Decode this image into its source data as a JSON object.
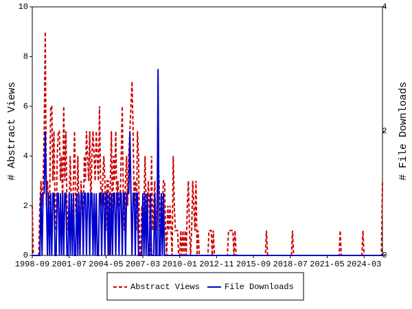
{
  "chart_data": {
    "type": "line",
    "x": [
      "1998-09",
      "1998-10",
      "1998-11",
      "1998-12",
      "1999-01",
      "1999-02",
      "1999-03",
      "1999-04",
      "1999-05",
      "1999-06",
      "1999-07",
      "1999-08",
      "1999-09",
      "1999-10",
      "1999-11",
      "1999-12",
      "2000-01",
      "2000-02",
      "2000-03",
      "2000-04",
      "2000-05",
      "2000-06",
      "2000-07",
      "2000-08",
      "2000-09",
      "2000-10",
      "2000-11",
      "2000-12",
      "2001-01",
      "2001-02",
      "2001-03",
      "2001-04",
      "2001-05",
      "2001-06",
      "2001-07",
      "2001-08",
      "2001-09",
      "2001-10",
      "2001-11",
      "2001-12",
      "2002-01",
      "2002-02",
      "2002-03",
      "2002-04",
      "2002-05",
      "2002-06",
      "2002-07",
      "2002-08",
      "2002-09",
      "2002-10",
      "2002-11",
      "2002-12",
      "2003-01",
      "2003-02",
      "2003-03",
      "2003-04",
      "2003-05",
      "2003-06",
      "2003-07",
      "2003-08",
      "2003-09",
      "2003-10",
      "2003-11",
      "2003-12",
      "2004-01",
      "2004-02",
      "2004-03",
      "2004-04",
      "2004-05",
      "2004-06",
      "2004-07",
      "2004-08",
      "2004-09",
      "2004-10",
      "2004-11",
      "2004-12",
      "2005-01",
      "2005-02",
      "2005-03",
      "2005-04",
      "2005-05",
      "2005-06",
      "2005-07",
      "2005-08",
      "2005-09",
      "2005-10",
      "2005-11",
      "2005-12",
      "2006-01",
      "2006-02",
      "2006-03",
      "2006-04",
      "2006-05",
      "2006-06",
      "2006-07",
      "2006-08",
      "2006-09",
      "2006-10",
      "2006-11",
      "2006-12",
      "2007-01",
      "2007-02",
      "2007-03",
      "2007-04",
      "2007-05",
      "2007-06",
      "2007-07",
      "2007-08",
      "2007-09",
      "2007-10",
      "2007-11",
      "2007-12",
      "2008-01",
      "2008-02",
      "2008-03",
      "2008-04",
      "2008-05",
      "2008-06",
      "2008-07",
      "2008-08",
      "2008-09",
      "2008-10",
      "2008-11",
      "2008-12",
      "2009-01",
      "2009-02",
      "2009-03",
      "2009-04",
      "2009-05",
      "2009-06",
      "2009-07",
      "2009-08",
      "2009-09",
      "2009-10",
      "2009-11",
      "2009-12",
      "2010-01",
      "2010-02",
      "2010-03",
      "2010-04",
      "2010-05",
      "2010-06",
      "2010-07",
      "2010-08",
      "2010-09",
      "2010-10",
      "2010-11",
      "2010-12",
      "2011-01",
      "2011-02",
      "2011-03",
      "2011-04",
      "2011-05",
      "2011-06",
      "2011-07",
      "2011-08",
      "2011-09",
      "2011-10",
      "2011-11",
      "2011-12",
      "2012-01",
      "2012-02",
      "2012-03",
      "2012-04",
      "2012-05",
      "2012-06",
      "2012-07",
      "2012-08",
      "2012-09",
      "2012-10",
      "2012-11",
      "2012-12",
      "2013-01",
      "2013-02",
      "2013-03",
      "2013-04",
      "2013-05",
      "2013-06",
      "2013-07",
      "2013-08",
      "2013-09",
      "2013-10",
      "2013-11",
      "2013-12",
      "2014-01",
      "2014-02",
      "2014-03",
      "2014-04",
      "2014-05",
      "2014-06",
      "2014-07",
      "2014-08",
      "2014-09",
      "2014-10",
      "2014-11",
      "2014-12",
      "2015-01",
      "2015-02",
      "2015-03",
      "2015-04",
      "2015-05",
      "2015-06",
      "2015-07",
      "2015-08",
      "2015-09",
      "2015-10",
      "2015-11",
      "2015-12",
      "2016-01",
      "2016-02",
      "2016-03",
      "2016-04",
      "2016-05",
      "2016-06",
      "2016-07",
      "2016-08",
      "2016-09",
      "2016-10",
      "2016-11",
      "2016-12",
      "2017-01",
      "2017-02",
      "2017-03",
      "2017-04",
      "2017-05",
      "2017-06",
      "2017-07",
      "2017-08",
      "2017-09",
      "2017-10",
      "2017-11",
      "2017-12",
      "2018-01",
      "2018-02",
      "2018-03",
      "2018-04",
      "2018-05",
      "2018-06",
      "2018-07",
      "2018-08",
      "2018-09",
      "2018-10",
      "2018-11",
      "2018-12",
      "2019-01",
      "2019-02",
      "2019-03",
      "2019-04",
      "2019-05",
      "2019-06",
      "2019-07",
      "2019-08",
      "2019-09",
      "2019-10",
      "2019-11",
      "2019-12",
      "2020-01",
      "2020-02",
      "2020-03",
      "2020-04",
      "2020-05",
      "2020-06",
      "2020-07",
      "2020-08",
      "2020-09",
      "2020-10",
      "2020-11",
      "2020-12",
      "2021-01",
      "2021-02",
      "2021-03",
      "2021-04",
      "2021-05",
      "2021-06",
      "2021-07",
      "2021-08",
      "2021-09",
      "2021-10",
      "2021-11",
      "2021-12",
      "2022-01",
      "2022-02",
      "2022-03",
      "2022-04",
      "2022-05",
      "2022-06",
      "2022-07",
      "2022-08",
      "2022-09",
      "2022-10",
      "2022-11",
      "2022-12",
      "2023-01",
      "2023-02",
      "2023-03",
      "2023-04",
      "2023-05",
      "2023-06",
      "2023-07",
      "2023-08",
      "2023-09",
      "2023-10",
      "2023-11",
      "2023-12",
      "2024-01",
      "2024-02",
      "2024-03",
      "2024-04",
      "2024-05",
      "2024-06",
      "2024-07",
      "2024-08",
      "2024-09",
      "2024-10",
      "2024-11",
      "2024-12",
      "2025-01",
      "2025-02",
      "2025-03",
      "2025-04",
      "2025-05",
      "2025-06",
      "2025-07",
      "2025-08"
    ],
    "series": [
      {
        "name": "Abstract Views",
        "color": "#cc0000",
        "dash": true,
        "axis": "y",
        "values": [
          2,
          0,
          0,
          0,
          0,
          0,
          0,
          2,
          3,
          2,
          3,
          5,
          9,
          2,
          3,
          2,
          2,
          6,
          6,
          3,
          5,
          2,
          1,
          4,
          5,
          5,
          3,
          4,
          2,
          6,
          3,
          5,
          2,
          1,
          2,
          4,
          2,
          1,
          3,
          5,
          2,
          1,
          4,
          2,
          0,
          3,
          2,
          1,
          4,
          3,
          5,
          4,
          3,
          5,
          2,
          4,
          5,
          4,
          3,
          5,
          4,
          3,
          6,
          3,
          2,
          3,
          4,
          3,
          1,
          3,
          3,
          0,
          3,
          5,
          1,
          4,
          3,
          5,
          2,
          3,
          2,
          2,
          4,
          6,
          2,
          1,
          3,
          4,
          2,
          4,
          5,
          6,
          7,
          5,
          2,
          3,
          1,
          5,
          4,
          0,
          0,
          2,
          1,
          2,
          4,
          2,
          1,
          3,
          2,
          0,
          4,
          1,
          2,
          3,
          1,
          2,
          4,
          3,
          1,
          1,
          2,
          3,
          3,
          1,
          0,
          2,
          1,
          2,
          1,
          0,
          4,
          2,
          1,
          1,
          1,
          0,
          0,
          1,
          0,
          1,
          0,
          1,
          0,
          2,
          3,
          1,
          0,
          1,
          3,
          2,
          1,
          3,
          0,
          1,
          0,
          0,
          0,
          0,
          0,
          0,
          0,
          0,
          0,
          1,
          1,
          1,
          0,
          1,
          0,
          0,
          0,
          0,
          0,
          0,
          0,
          0,
          0,
          0,
          0,
          0,
          0,
          1,
          1,
          1,
          1,
          1,
          0,
          1,
          0,
          0,
          0,
          0,
          0,
          0,
          0,
          0,
          0,
          0,
          0,
          0,
          0,
          0,
          0,
          0,
          0,
          0,
          0,
          0,
          0,
          0,
          0,
          0,
          0,
          0,
          0,
          0,
          1,
          0,
          0,
          0,
          0,
          0,
          0,
          0,
          0,
          0,
          0,
          0,
          0,
          0,
          0,
          0,
          0,
          0,
          0,
          0,
          0,
          0,
          0,
          0,
          1,
          0,
          0,
          0,
          0,
          0,
          0,
          0,
          0,
          0,
          0,
          0,
          0,
          0,
          0,
          0,
          0,
          0,
          0,
          0,
          0,
          0,
          0,
          0,
          0,
          0,
          0,
          0,
          0,
          0,
          0,
          0,
          0,
          0,
          0,
          0,
          0,
          0,
          0,
          0,
          0,
          0,
          0,
          0,
          1,
          0,
          0,
          0,
          0,
          0,
          0,
          0,
          0,
          0,
          0,
          0,
          0,
          0,
          0,
          0,
          0,
          0,
          0,
          0,
          0,
          1,
          0,
          0,
          0,
          0,
          0,
          0,
          0,
          0,
          0,
          0,
          0,
          0,
          0,
          0,
          0,
          0,
          0,
          3
        ]
      },
      {
        "name": "File Downloads",
        "color": "#0000cc",
        "dash": false,
        "axis": "y2",
        "values": [
          0,
          0,
          0,
          0,
          0,
          0,
          0,
          0,
          1,
          0,
          1,
          1,
          2,
          1,
          0,
          1,
          0,
          1,
          0,
          1,
          1,
          0,
          0,
          1,
          1,
          0,
          1,
          0,
          1,
          0,
          1,
          1,
          0,
          0,
          1,
          0,
          1,
          0,
          1,
          0,
          0,
          1,
          0,
          1,
          0,
          1,
          1,
          0,
          1,
          1,
          0,
          1,
          1,
          0,
          1,
          1,
          0,
          1,
          0,
          1,
          0,
          0,
          1,
          1,
          0,
          1,
          1,
          0,
          1,
          1,
          0,
          1,
          0,
          1,
          0,
          1,
          1,
          0,
          1,
          1,
          0,
          1,
          1,
          0,
          1,
          1,
          0,
          1,
          1,
          1,
          2,
          1,
          0,
          1,
          1,
          0,
          1,
          1,
          0,
          0,
          0,
          0,
          1,
          0,
          1,
          0,
          1,
          0,
          0,
          1,
          0,
          0,
          0,
          1,
          0,
          0,
          3,
          0,
          0,
          1,
          0,
          1,
          0,
          0,
          0,
          0,
          0,
          0,
          0,
          0,
          0,
          0,
          0,
          0,
          0,
          0,
          0,
          0,
          0,
          0,
          0,
          0,
          0,
          0,
          0,
          0,
          0,
          0,
          0,
          0,
          0,
          0,
          0,
          0,
          0,
          0,
          0,
          0,
          0,
          0,
          0,
          0,
          0,
          0,
          0,
          0,
          0,
          0,
          0,
          0,
          0,
          0,
          0,
          0,
          0,
          0,
          0,
          0,
          0,
          0,
          0,
          0,
          0,
          0,
          0,
          0,
          0,
          0,
          0,
          0,
          0,
          0,
          0,
          0,
          0,
          0,
          0,
          0,
          0,
          0,
          0,
          0,
          0,
          0,
          0,
          0,
          0,
          0,
          0,
          0,
          0,
          0,
          0,
          0,
          0,
          0,
          0,
          0,
          0,
          0,
          0,
          0,
          0,
          0,
          0,
          0,
          0,
          0,
          0,
          0,
          0,
          0,
          0,
          0,
          0,
          0,
          0,
          0,
          0,
          0,
          0,
          0,
          0,
          0,
          0,
          0,
          0,
          0,
          0,
          0,
          0,
          0,
          0,
          0,
          0,
          0,
          0,
          0,
          0,
          0,
          0,
          0,
          0,
          0,
          0,
          0,
          0,
          0,
          0,
          0,
          0,
          0,
          0,
          0,
          0,
          0,
          0,
          0,
          0,
          0,
          0,
          0,
          0,
          0,
          0,
          0,
          0,
          0,
          0,
          0,
          0,
          0,
          0,
          0,
          0,
          0,
          0,
          0,
          0,
          0,
          0,
          0,
          0,
          0,
          0,
          0,
          0,
          0,
          0,
          0,
          0,
          0,
          0,
          0,
          0,
          0,
          0,
          0,
          0,
          0,
          0,
          0,
          0,
          0
        ]
      }
    ],
    "xticks": [
      "1998-09",
      "2001-07",
      "2004-05",
      "2007-03",
      "2010-01",
      "2012-11",
      "2015-09",
      "2018-07",
      "2021-05",
      "2024-03"
    ],
    "ylabel": "# Abstract Views",
    "ylim": [
      0,
      10
    ],
    "yticks": [
      0,
      2,
      4,
      6,
      8,
      10
    ],
    "y2label": "# File Downloads",
    "y2lim": [
      0,
      4
    ],
    "y2ticks": [
      0,
      2,
      4
    ],
    "legend": "bottom"
  }
}
